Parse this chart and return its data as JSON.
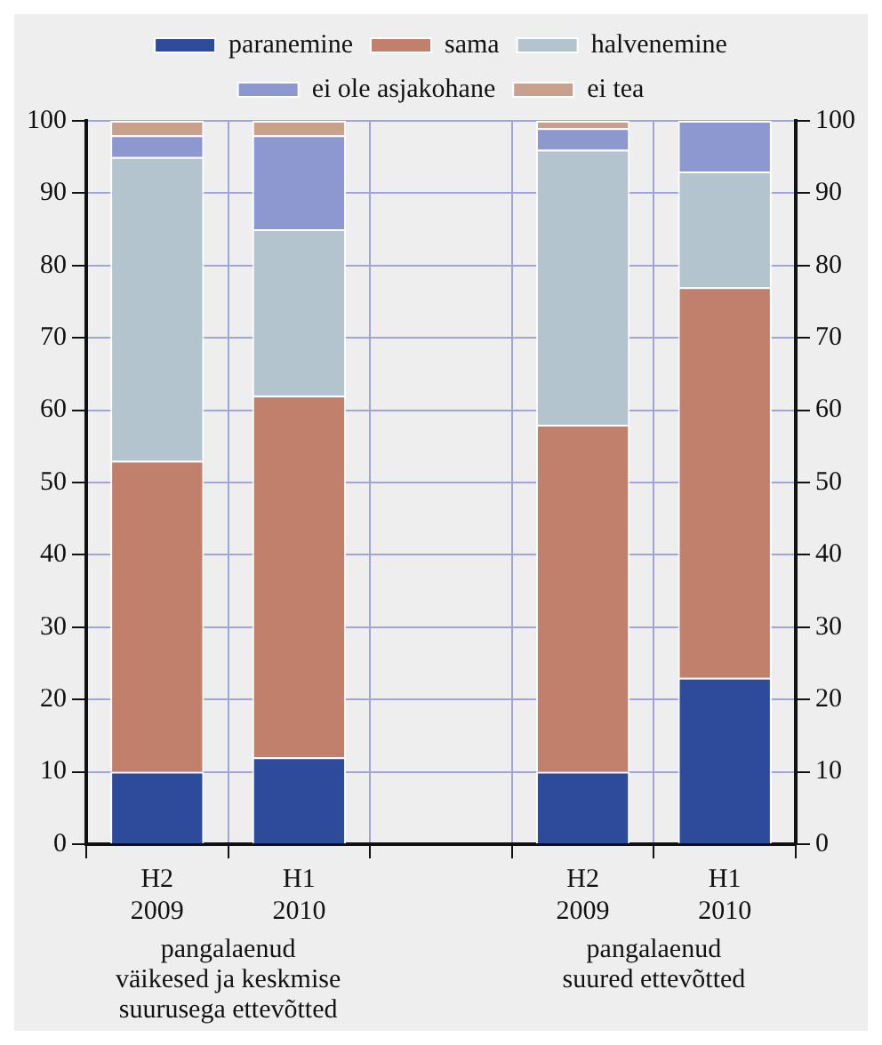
{
  "chart_data": {
    "type": "bar",
    "stacked": true,
    "categories": [
      "H2\n2009",
      "H1\n2010",
      null,
      "H2\n2009",
      "H1\n2010"
    ],
    "series": [
      {
        "name": "paranemine",
        "color": "#2e4a9b",
        "values": [
          10,
          12,
          null,
          10,
          23
        ]
      },
      {
        "name": "sama",
        "color": "#c0806c",
        "values": [
          43,
          50,
          null,
          48,
          54
        ]
      },
      {
        "name": "halvenemine",
        "color": "#b4c4ce",
        "values": [
          42,
          23,
          null,
          38,
          16
        ]
      },
      {
        "name": "ei ole asjakohane",
        "color": "#8e98d0",
        "values": [
          3,
          13,
          null,
          3,
          7
        ]
      },
      {
        "name": "ei tea",
        "color": "#c9a08c",
        "values": [
          2,
          2,
          null,
          1,
          0
        ]
      }
    ],
    "ylim": [
      0,
      100
    ],
    "yticks": [
      0,
      10,
      20,
      30,
      40,
      50,
      60,
      70,
      80,
      90,
      100
    ],
    "y2lim": [
      0,
      100
    ],
    "y2ticks": [
      0,
      10,
      20,
      30,
      40,
      50,
      60,
      70,
      80,
      90,
      100
    ],
    "annotations": [
      "pangalaenud\nväikesed ja keskmise\nsuurusega ettevõtted",
      "pangalaenud\nsuured ettevõtted"
    ],
    "grid": true,
    "legend": "top"
  }
}
